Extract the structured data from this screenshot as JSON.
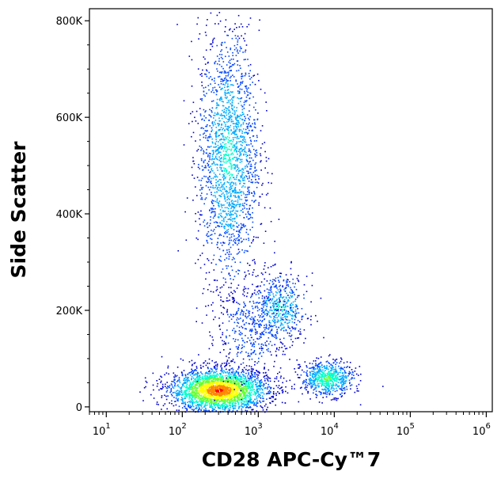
{
  "chart_data": {
    "type": "scatter",
    "title": "",
    "xlabel": "CD28 APC-Cy™7",
    "ylabel": "Side Scatter",
    "x_scale": "log",
    "xlim": [
      6,
      1200000
    ],
    "x_ticks": [
      {
        "value": 10,
        "base": "10",
        "exp": "1"
      },
      {
        "value": 100,
        "base": "10",
        "exp": "2"
      },
      {
        "value": 1000,
        "base": "10",
        "exp": "3"
      },
      {
        "value": 10000,
        "base": "10",
        "exp": "4"
      },
      {
        "value": 100000,
        "base": "10",
        "exp": "5"
      },
      {
        "value": 1000000,
        "base": "10",
        "exp": "6"
      }
    ],
    "y_scale": "linear",
    "ylim": [
      -10000,
      825000
    ],
    "y_ticks": [
      {
        "value": 0,
        "label": "0"
      },
      {
        "value": 200000,
        "label": "200K"
      },
      {
        "value": 400000,
        "label": "400K"
      },
      {
        "value": 600000,
        "label": "600K"
      },
      {
        "value": 800000,
        "label": "800K"
      }
    ],
    "grid": false,
    "legend": "none",
    "color_scale": [
      "#0000cc",
      "#0044ff",
      "#00aaff",
      "#00ffcc",
      "#66ff33",
      "#ffff00",
      "#ff8800",
      "#ff0000"
    ],
    "populations": [
      {
        "x_center": 300,
        "y_center": 35000,
        "x_spread_decades": 0.32,
        "y_spread": 22000,
        "points": 2600,
        "peak": "red"
      },
      {
        "x_center": 400,
        "y_center": 520000,
        "x_spread_decades": 0.2,
        "y_spread": 130000,
        "points": 1900,
        "peak": "cyan"
      },
      {
        "x_center": 1900,
        "y_center": 205000,
        "x_spread_decades": 0.18,
        "y_spread": 35000,
        "points": 450,
        "peak": "cyan"
      },
      {
        "x_center": 8000,
        "y_center": 60000,
        "x_spread_decades": 0.17,
        "y_spread": 18000,
        "points": 650,
        "peak": "green"
      },
      {
        "x_center": 800,
        "y_center": 160000,
        "x_spread_decades": 0.3,
        "y_spread": 60000,
        "points": 500,
        "peak": "blue"
      }
    ]
  }
}
